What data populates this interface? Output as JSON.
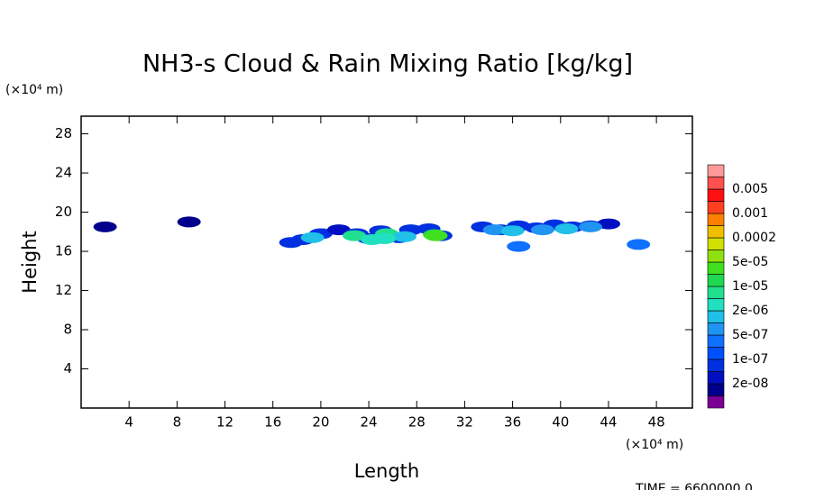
{
  "chart_data": {
    "type": "contour",
    "title": "NH3-s Cloud & Rain Mixing Ratio [kg/kg]",
    "y_unit": "(×10⁴ m)",
    "x_unit": "(×10⁴ m)",
    "y_label": "Height",
    "x_label": "Length",
    "footer": "TIME = 6600000.0",
    "xlim": [
      0,
      51
    ],
    "ylim": [
      0,
      29.8
    ],
    "xticks": [
      4,
      8,
      12,
      16,
      20,
      24,
      28,
      32,
      36,
      40,
      44,
      48
    ],
    "yticks": [
      4,
      8,
      12,
      16,
      20,
      24,
      28
    ],
    "colorbar_colors": [
      "#7a0096",
      "#00008c",
      "#0010c0",
      "#0030e0",
      "#0050ff",
      "#1070ff",
      "#2094f0",
      "#20c0e8",
      "#20e0c0",
      "#20e090",
      "#20d850",
      "#40e020",
      "#90e010",
      "#d0e000",
      "#f0c000",
      "#ff8000",
      "#ff4020",
      "#ff1010",
      "#ff5050",
      "#ff9898"
    ],
    "levels": [
      {
        "value": 2e-08,
        "label": "2e-08"
      },
      {
        "value": 1e-07,
        "label": "1e-07"
      },
      {
        "value": 5e-07,
        "label": "5e-07"
      },
      {
        "value": 2e-06,
        "label": "2e-06"
      },
      {
        "value": 1e-05,
        "label": "1e-05"
      },
      {
        "value": 5e-05,
        "label": "5e-05"
      },
      {
        "value": 0.0002,
        "label": "0.0002"
      },
      {
        "value": 0.001,
        "label": "0.001"
      },
      {
        "value": 0.005,
        "label": "0.005"
      }
    ],
    "x": [
      2,
      9,
      17.5,
      18.5,
      20,
      21.5,
      23,
      24,
      25,
      26.5,
      27.5,
      29,
      30,
      33.5,
      35,
      36.5,
      38,
      39.5,
      41,
      42.5,
      44,
      36.5,
      46.5,
      19.3,
      22.8,
      24.3,
      25.5,
      27,
      29.5,
      34.5,
      36,
      38.5,
      40.5,
      42.5,
      25.3,
      29.6
    ],
    "y": [
      18.5,
      19,
      16.9,
      17.2,
      17.8,
      18.2,
      17.8,
      17.3,
      18.1,
      17.4,
      18.2,
      18.3,
      17.6,
      18.5,
      18.2,
      18.6,
      18.4,
      18.7,
      18.5,
      18.6,
      18.8,
      16.5,
      16.7,
      17.4,
      17.6,
      17.2,
      17.8,
      17.5,
      17.7,
      18.2,
      18.1,
      18.2,
      18.3,
      18.5,
      17.3,
      17.6
    ],
    "values": [
      2e-08,
      2e-08,
      1e-07,
      1e-07,
      1e-07,
      5e-08,
      1e-07,
      1e-07,
      1e-07,
      1e-07,
      1e-07,
      1e-07,
      1e-07,
      1e-07,
      1e-07,
      1e-07,
      1e-07,
      1e-07,
      1e-07,
      1e-07,
      5e-08,
      5e-07,
      5e-07,
      2e-06,
      1e-05,
      5e-06,
      1e-05,
      2e-06,
      2e-05,
      1e-06,
      2e-06,
      1e-06,
      2e-06,
      1e-06,
      5e-06,
      5e-05
    ]
  }
}
